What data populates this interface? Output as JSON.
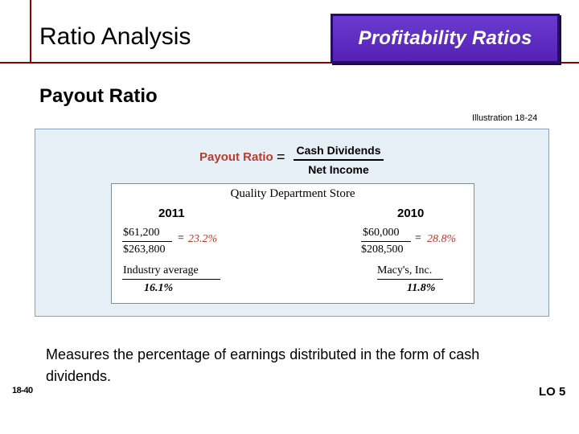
{
  "header": {
    "title": "Ratio Analysis",
    "badge": "Profitability Ratios"
  },
  "subtitle": "Payout Ratio",
  "illustration_label": "Illustration 18-24",
  "formula": {
    "label": "Payout Ratio",
    "equals": "=",
    "numerator": "Cash Dividends",
    "denominator": "Net Income"
  },
  "example": {
    "company": "Quality Department Store",
    "years": [
      {
        "year": "2011",
        "numerator": "$61,200",
        "denominator": "$263,800",
        "dash": "=",
        "result": "23.2%"
      },
      {
        "year": "2010",
        "numerator": "$60,000",
        "denominator": "$208,500",
        "dash": "=",
        "result": "28.8%"
      }
    ],
    "comparisons": [
      {
        "label": "Industry average",
        "value": "16.1%"
      },
      {
        "label": "Macy's, Inc.",
        "value": "11.8%"
      }
    ]
  },
  "description": "Measures the percentage of earnings distributed in the form of cash dividends.",
  "footer": {
    "slide_number": "18-40",
    "learning_objective": "LO 5"
  },
  "colors": {
    "rule": "#8b0000",
    "badge": "#5521b5",
    "accent_red": "#c0392b",
    "panel": "#e6eef6"
  }
}
